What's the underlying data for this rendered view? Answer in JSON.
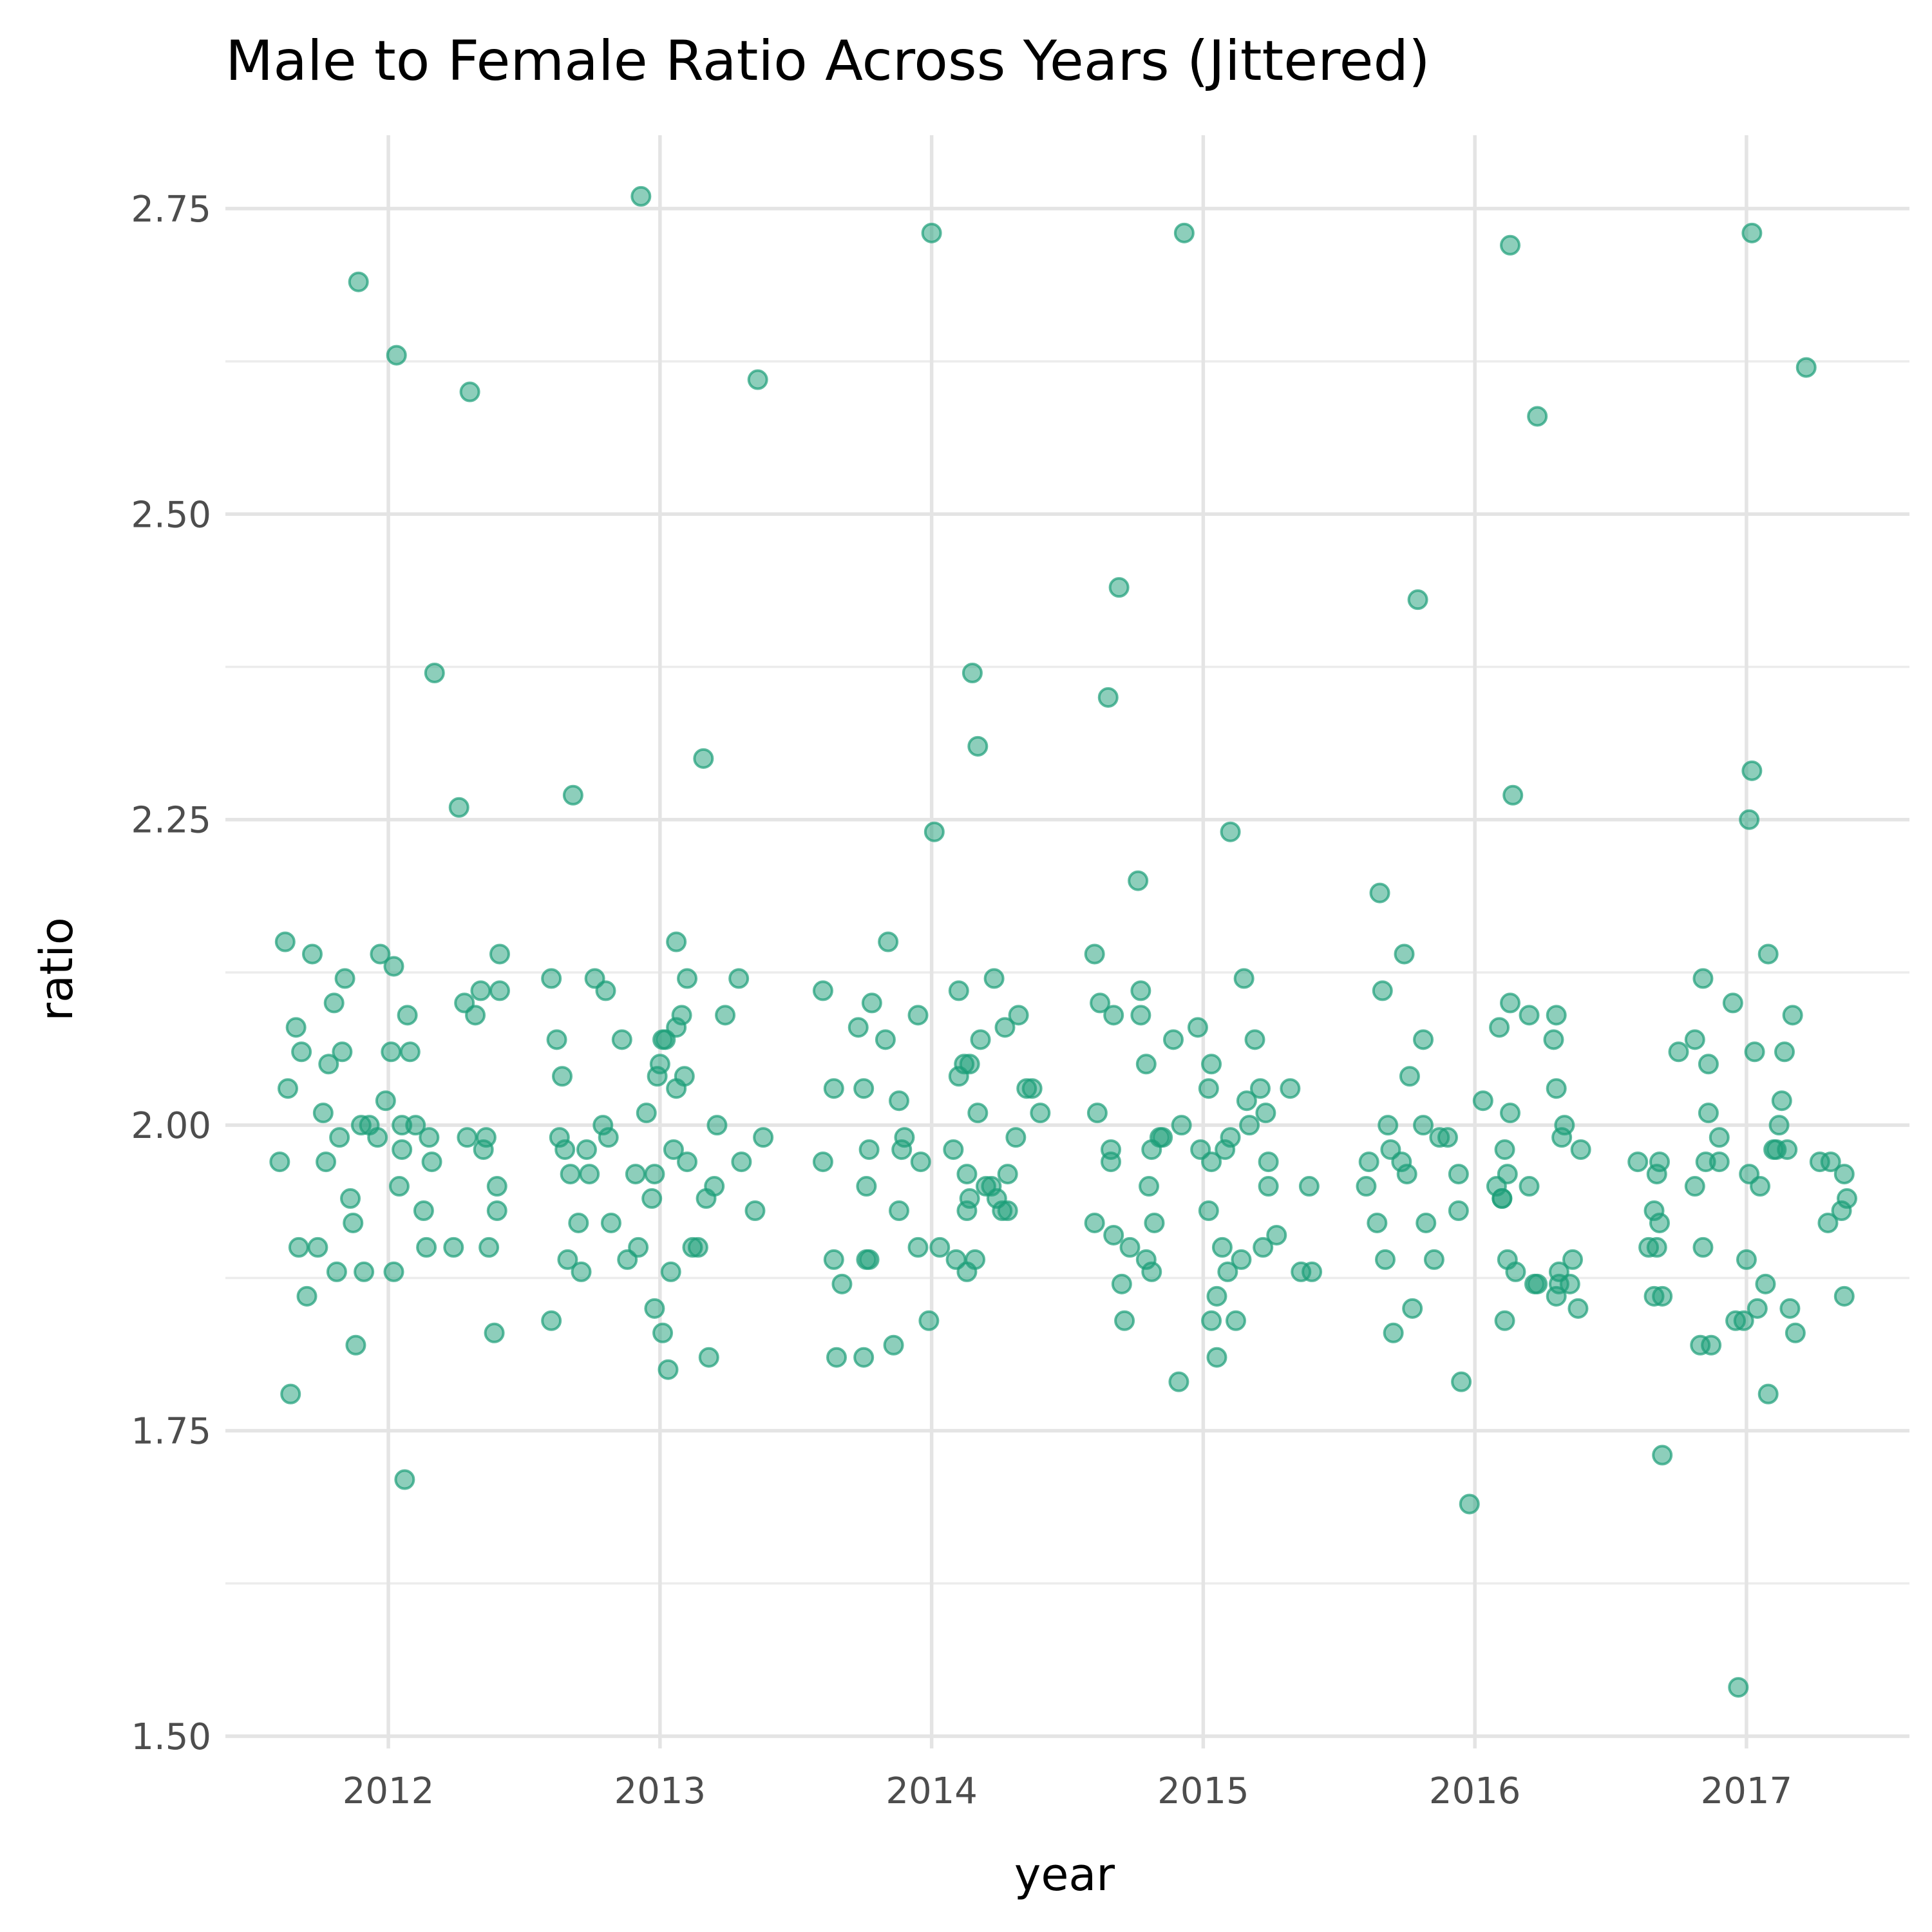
{
  "chart_data": {
    "type": "scatter",
    "title": "Male to Female Ratio Across Years (Jittered)",
    "xlabel": "year",
    "ylabel": "ratio",
    "xlim": [
      2011.4,
      2017.6
    ],
    "ylim": [
      1.49,
      2.81
    ],
    "x_ticks": [
      2012,
      2013,
      2014,
      2015,
      2016,
      2017
    ],
    "x_tick_labels": [
      "2012",
      "2013",
      "2014",
      "2015",
      "2016",
      "2017"
    ],
    "y_ticks": [
      1.5,
      1.75,
      2.0,
      2.25,
      2.5,
      2.75
    ],
    "y_tick_labels": [
      "1.50",
      "1.75",
      "2.00",
      "2.25",
      "2.50",
      "2.75"
    ],
    "grid": true,
    "color": "#1b9e77",
    "points": [
      [
        2011.6,
        1.97
      ],
      [
        2011.62,
        2.15
      ],
      [
        2011.63,
        2.03
      ],
      [
        2011.64,
        1.78
      ],
      [
        2011.66,
        2.08
      ],
      [
        2011.67,
        1.9
      ],
      [
        2011.68,
        2.06
      ],
      [
        2011.7,
        1.86
      ],
      [
        2011.72,
        2.14
      ],
      [
        2011.74,
        1.9
      ],
      [
        2011.76,
        2.01
      ],
      [
        2011.77,
        1.97
      ],
      [
        2011.78,
        2.05
      ],
      [
        2011.8,
        2.1
      ],
      [
        2011.81,
        1.88
      ],
      [
        2011.82,
        1.99
      ],
      [
        2011.83,
        2.06
      ],
      [
        2011.84,
        2.12
      ],
      [
        2011.86,
        1.94
      ],
      [
        2011.87,
        1.92
      ],
      [
        2011.88,
        1.82
      ],
      [
        2011.89,
        2.69
      ],
      [
        2011.9,
        2.0
      ],
      [
        2011.91,
        1.88
      ],
      [
        2011.93,
        2.0
      ],
      [
        2011.96,
        1.99
      ],
      [
        2011.97,
        2.14
      ],
      [
        2011.99,
        2.02
      ],
      [
        2012.01,
        2.06
      ],
      [
        2012.02,
        2.13
      ],
      [
        2012.02,
        1.88
      ],
      [
        2012.03,
        2.63
      ],
      [
        2012.04,
        1.95
      ],
      [
        2012.05,
        1.98
      ],
      [
        2012.05,
        2.0
      ],
      [
        2012.06,
        1.71
      ],
      [
        2012.07,
        2.09
      ],
      [
        2012.08,
        2.06
      ],
      [
        2012.1,
        2.0
      ],
      [
        2012.13,
        1.93
      ],
      [
        2012.14,
        1.9
      ],
      [
        2012.15,
        1.99
      ],
      [
        2012.16,
        1.97
      ],
      [
        2012.17,
        2.37
      ],
      [
        2012.24,
        1.9
      ],
      [
        2012.26,
        2.26
      ],
      [
        2012.28,
        2.1
      ],
      [
        2012.29,
        1.99
      ],
      [
        2012.3,
        2.6
      ],
      [
        2012.32,
        2.09
      ],
      [
        2012.34,
        2.11
      ],
      [
        2012.35,
        1.98
      ],
      [
        2012.36,
        1.99
      ],
      [
        2012.37,
        1.9
      ],
      [
        2012.39,
        1.83
      ],
      [
        2012.4,
        1.93
      ],
      [
        2012.4,
        1.95
      ],
      [
        2012.41,
        2.11
      ],
      [
        2012.41,
        2.14
      ],
      [
        2012.6,
        2.12
      ],
      [
        2012.6,
        1.84
      ],
      [
        2012.62,
        2.07
      ],
      [
        2012.63,
        1.99
      ],
      [
        2012.64,
        2.04
      ],
      [
        2012.65,
        1.98
      ],
      [
        2012.66,
        1.89
      ],
      [
        2012.67,
        1.96
      ],
      [
        2012.68,
        2.27
      ],
      [
        2012.7,
        1.92
      ],
      [
        2012.71,
        1.88
      ],
      [
        2012.73,
        1.98
      ],
      [
        2012.74,
        1.96
      ],
      [
        2012.76,
        2.12
      ],
      [
        2012.79,
        2.0
      ],
      [
        2012.8,
        2.11
      ],
      [
        2012.81,
        1.99
      ],
      [
        2012.82,
        1.92
      ],
      [
        2012.86,
        2.07
      ],
      [
        2012.88,
        1.89
      ],
      [
        2012.91,
        1.96
      ],
      [
        2012.92,
        1.9
      ],
      [
        2012.93,
        2.76
      ],
      [
        2012.95,
        2.01
      ],
      [
        2012.97,
        1.94
      ],
      [
        2012.98,
        1.85
      ],
      [
        2012.98,
        1.96
      ],
      [
        2012.99,
        2.04
      ],
      [
        2013.0,
        2.05
      ],
      [
        2013.01,
        2.07
      ],
      [
        2013.01,
        1.83
      ],
      [
        2013.02,
        2.07
      ],
      [
        2013.03,
        1.8
      ],
      [
        2013.04,
        1.88
      ],
      [
        2013.05,
        1.98
      ],
      [
        2013.06,
        2.03
      ],
      [
        2013.06,
        2.08
      ],
      [
        2013.06,
        2.15
      ],
      [
        2013.08,
        2.09
      ],
      [
        2013.09,
        2.04
      ],
      [
        2013.1,
        2.12
      ],
      [
        2013.1,
        1.97
      ],
      [
        2013.12,
        1.9
      ],
      [
        2013.14,
        1.9
      ],
      [
        2013.16,
        2.3
      ],
      [
        2013.17,
        1.94
      ],
      [
        2013.18,
        1.81
      ],
      [
        2013.2,
        1.95
      ],
      [
        2013.21,
        2.0
      ],
      [
        2013.24,
        2.09
      ],
      [
        2013.29,
        2.12
      ],
      [
        2013.3,
        1.97
      ],
      [
        2013.35,
        1.93
      ],
      [
        2013.36,
        2.61
      ],
      [
        2013.38,
        1.99
      ],
      [
        2013.6,
        2.11
      ],
      [
        2013.6,
        1.97
      ],
      [
        2013.64,
        2.03
      ],
      [
        2013.64,
        1.89
      ],
      [
        2013.65,
        1.81
      ],
      [
        2013.67,
        1.87
      ],
      [
        2013.73,
        2.08
      ],
      [
        2013.75,
        1.81
      ],
      [
        2013.75,
        2.03
      ],
      [
        2013.76,
        1.89
      ],
      [
        2013.76,
        1.95
      ],
      [
        2013.77,
        1.89
      ],
      [
        2013.77,
        1.98
      ],
      [
        2013.78,
        2.1
      ],
      [
        2013.83,
        2.07
      ],
      [
        2013.84,
        2.15
      ],
      [
        2013.86,
        1.82
      ],
      [
        2013.88,
        1.93
      ],
      [
        2013.88,
        2.02
      ],
      [
        2013.89,
        1.98
      ],
      [
        2013.9,
        1.99
      ],
      [
        2013.95,
        1.9
      ],
      [
        2013.95,
        2.09
      ],
      [
        2013.96,
        1.97
      ],
      [
        2013.99,
        1.84
      ],
      [
        2014.0,
        2.73
      ],
      [
        2014.01,
        2.24
      ],
      [
        2014.03,
        1.9
      ],
      [
        2014.08,
        1.98
      ],
      [
        2014.09,
        1.89
      ],
      [
        2014.1,
        2.04
      ],
      [
        2014.1,
        2.11
      ],
      [
        2014.12,
        2.05
      ],
      [
        2014.13,
        1.88
      ],
      [
        2014.13,
        1.96
      ],
      [
        2014.13,
        1.93
      ],
      [
        2014.14,
        1.94
      ],
      [
        2014.14,
        2.05
      ],
      [
        2014.15,
        2.37
      ],
      [
        2014.16,
        1.89
      ],
      [
        2014.17,
        2.31
      ],
      [
        2014.17,
        2.01
      ],
      [
        2014.18,
        2.07
      ],
      [
        2014.2,
        1.95
      ],
      [
        2014.22,
        1.95
      ],
      [
        2014.23,
        2.12
      ],
      [
        2014.24,
        1.94
      ],
      [
        2014.26,
        1.93
      ],
      [
        2014.27,
        2.08
      ],
      [
        2014.28,
        1.93
      ],
      [
        2014.28,
        1.96
      ],
      [
        2014.31,
        1.99
      ],
      [
        2014.32,
        2.09
      ],
      [
        2014.35,
        2.03
      ],
      [
        2014.37,
        2.03
      ],
      [
        2014.4,
        2.01
      ],
      [
        2014.6,
        2.14
      ],
      [
        2014.6,
        1.92
      ],
      [
        2014.61,
        2.01
      ],
      [
        2014.62,
        2.1
      ],
      [
        2014.65,
        2.35
      ],
      [
        2014.66,
        1.97
      ],
      [
        2014.66,
        1.98
      ],
      [
        2014.67,
        1.91
      ],
      [
        2014.67,
        2.09
      ],
      [
        2014.69,
        2.44
      ],
      [
        2014.7,
        1.87
      ],
      [
        2014.71,
        1.84
      ],
      [
        2014.73,
        1.9
      ],
      [
        2014.76,
        2.2
      ],
      [
        2014.77,
        2.09
      ],
      [
        2014.77,
        2.11
      ],
      [
        2014.79,
        1.89
      ],
      [
        2014.79,
        2.05
      ],
      [
        2014.8,
        1.95
      ],
      [
        2014.81,
        1.98
      ],
      [
        2014.81,
        1.88
      ],
      [
        2014.82,
        1.92
      ],
      [
        2014.84,
        1.99
      ],
      [
        2014.85,
        1.99
      ],
      [
        2014.89,
        2.07
      ],
      [
        2014.91,
        1.79
      ],
      [
        2014.92,
        2.0
      ],
      [
        2014.93,
        2.73
      ],
      [
        2014.98,
        2.08
      ],
      [
        2014.99,
        1.98
      ],
      [
        2015.02,
        1.93
      ],
      [
        2015.02,
        2.03
      ],
      [
        2015.03,
        2.05
      ],
      [
        2015.03,
        1.97
      ],
      [
        2015.03,
        1.84
      ],
      [
        2015.05,
        1.86
      ],
      [
        2015.05,
        1.81
      ],
      [
        2015.07,
        1.9
      ],
      [
        2015.08,
        1.98
      ],
      [
        2015.09,
        1.88
      ],
      [
        2015.1,
        2.24
      ],
      [
        2015.1,
        1.99
      ],
      [
        2015.12,
        1.84
      ],
      [
        2015.14,
        1.89
      ],
      [
        2015.15,
        2.12
      ],
      [
        2015.16,
        2.02
      ],
      [
        2015.17,
        2.0
      ],
      [
        2015.19,
        2.07
      ],
      [
        2015.21,
        2.03
      ],
      [
        2015.22,
        1.9
      ],
      [
        2015.23,
        2.01
      ],
      [
        2015.24,
        1.95
      ],
      [
        2015.24,
        1.97
      ],
      [
        2015.27,
        1.91
      ],
      [
        2015.32,
        2.03
      ],
      [
        2015.36,
        1.88
      ],
      [
        2015.39,
        1.95
      ],
      [
        2015.4,
        1.88
      ],
      [
        2015.6,
        1.95
      ],
      [
        2015.61,
        1.97
      ],
      [
        2015.64,
        1.92
      ],
      [
        2015.65,
        2.19
      ],
      [
        2015.66,
        2.11
      ],
      [
        2015.67,
        1.89
      ],
      [
        2015.68,
        2.0
      ],
      [
        2015.69,
        1.98
      ],
      [
        2015.7,
        1.83
      ],
      [
        2015.73,
        1.97
      ],
      [
        2015.74,
        2.14
      ],
      [
        2015.75,
        1.96
      ],
      [
        2015.76,
        2.04
      ],
      [
        2015.77,
        1.85
      ],
      [
        2015.79,
        2.43
      ],
      [
        2015.81,
        2.07
      ],
      [
        2015.81,
        2.0
      ],
      [
        2015.82,
        1.92
      ],
      [
        2015.85,
        1.89
      ],
      [
        2015.87,
        1.99
      ],
      [
        2015.9,
        1.99
      ],
      [
        2015.94,
        1.96
      ],
      [
        2015.94,
        1.93
      ],
      [
        2015.95,
        1.79
      ],
      [
        2015.98,
        1.69
      ],
      [
        2016.03,
        2.02
      ],
      [
        2016.08,
        1.95
      ],
      [
        2016.09,
        2.08
      ],
      [
        2016.1,
        1.94
      ],
      [
        2016.1,
        1.94
      ],
      [
        2016.11,
        1.84
      ],
      [
        2016.11,
        1.98
      ],
      [
        2016.12,
        1.96
      ],
      [
        2016.12,
        1.89
      ],
      [
        2016.13,
        2.1
      ],
      [
        2016.13,
        2.01
      ],
      [
        2016.13,
        2.72
      ],
      [
        2016.14,
        2.27
      ],
      [
        2016.15,
        1.88
      ],
      [
        2016.2,
        2.09
      ],
      [
        2016.2,
        1.95
      ],
      [
        2016.22,
        1.87
      ],
      [
        2016.23,
        1.87
      ],
      [
        2016.23,
        2.58
      ],
      [
        2016.29,
        2.07
      ],
      [
        2016.3,
        2.03
      ],
      [
        2016.3,
        1.86
      ],
      [
        2016.31,
        1.87
      ],
      [
        2016.31,
        1.88
      ],
      [
        2016.32,
        1.99
      ],
      [
        2016.33,
        2.0
      ],
      [
        2016.35,
        1.87
      ],
      [
        2016.36,
        1.89
      ],
      [
        2016.38,
        1.85
      ],
      [
        2016.39,
        1.98
      ],
      [
        2016.3,
        2.09
      ],
      [
        2016.6,
        1.97
      ],
      [
        2016.64,
        1.9
      ],
      [
        2016.66,
        1.93
      ],
      [
        2016.66,
        1.86
      ],
      [
        2016.67,
        1.96
      ],
      [
        2016.67,
        1.9
      ],
      [
        2016.68,
        1.92
      ],
      [
        2016.68,
        1.97
      ],
      [
        2016.69,
        1.73
      ],
      [
        2016.69,
        1.86
      ],
      [
        2016.75,
        2.06
      ],
      [
        2016.81,
        2.07
      ],
      [
        2016.81,
        1.95
      ],
      [
        2016.83,
        1.82
      ],
      [
        2016.84,
        2.12
      ],
      [
        2016.84,
        1.9
      ],
      [
        2016.85,
        1.97
      ],
      [
        2016.86,
        2.01
      ],
      [
        2016.86,
        2.05
      ],
      [
        2016.87,
        1.82
      ],
      [
        2016.9,
        1.97
      ],
      [
        2016.9,
        1.99
      ],
      [
        2016.95,
        2.1
      ],
      [
        2016.96,
        1.84
      ],
      [
        2016.97,
        1.54
      ],
      [
        2016.99,
        1.84
      ],
      [
        2017.0,
        1.89
      ],
      [
        2017.01,
        1.96
      ],
      [
        2017.01,
        2.25
      ],
      [
        2017.02,
        2.29
      ],
      [
        2017.02,
        2.73
      ],
      [
        2017.03,
        2.06
      ],
      [
        2017.04,
        1.85
      ],
      [
        2017.05,
        1.95
      ],
      [
        2017.07,
        1.87
      ],
      [
        2017.08,
        2.14
      ],
      [
        2017.08,
        1.78
      ],
      [
        2017.1,
        1.98
      ],
      [
        2017.11,
        1.98
      ],
      [
        2017.12,
        2.0
      ],
      [
        2017.13,
        2.02
      ],
      [
        2017.14,
        2.06
      ],
      [
        2017.15,
        1.98
      ],
      [
        2017.16,
        1.85
      ],
      [
        2017.17,
        2.09
      ],
      [
        2017.18,
        1.83
      ],
      [
        2017.22,
        2.62
      ],
      [
        2017.27,
        1.97
      ],
      [
        2017.3,
        1.92
      ],
      [
        2017.31,
        1.97
      ],
      [
        2017.35,
        1.93
      ],
      [
        2017.36,
        1.86
      ],
      [
        2017.36,
        1.96
      ],
      [
        2017.37,
        1.94
      ]
    ]
  }
}
